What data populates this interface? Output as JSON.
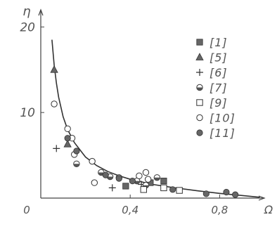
{
  "chart_data": {
    "type": "scatter",
    "title": "",
    "xlabel": "Ω",
    "ylabel": "η",
    "xlim": [
      0,
      1.0
    ],
    "ylim": [
      0,
      22
    ],
    "x_ticks": [
      "0",
      "0,4",
      "0,8"
    ],
    "x_tick_values": [
      0,
      0.4,
      0.8
    ],
    "y_ticks": [
      "10",
      "20"
    ],
    "y_tick_values": [
      10,
      20
    ],
    "grid": false,
    "legend_position": "top-right",
    "curve": {
      "x": [
        0.05,
        0.06,
        0.07,
        0.08,
        0.1,
        0.12,
        0.15,
        0.2,
        0.25,
        0.3,
        0.35,
        0.4,
        0.5,
        0.6,
        0.7,
        0.8,
        0.9,
        0.98
      ],
      "y": [
        18.5,
        15.5,
        13.4,
        11.8,
        9.5,
        8.0,
        6.5,
        4.8,
        3.8,
        3.1,
        2.6,
        2.2,
        1.6,
        1.2,
        0.85,
        0.55,
        0.3,
        0.1
      ]
    },
    "series": [
      {
        "name": "[1]",
        "marker": "filled-square",
        "x": [
          0.38,
          0.49,
          0.55
        ],
        "y": [
          1.4,
          1.8,
          2.0
        ]
      },
      {
        "name": "[5]",
        "marker": "filled-triangle",
        "x": [
          0.06,
          0.12
        ],
        "y": [
          15.0,
          6.3
        ]
      },
      {
        "name": "[6]",
        "marker": "plus",
        "x": [
          0.07,
          0.32,
          0.45
        ],
        "y": [
          5.8,
          1.2,
          1.6
        ]
      },
      {
        "name": "[7]",
        "marker": "half-circle",
        "x": [
          0.16,
          0.27,
          0.31,
          0.35,
          0.43,
          0.47,
          0.52
        ],
        "y": [
          4.0,
          3.0,
          2.5,
          2.4,
          2.0,
          1.5,
          2.4
        ]
      },
      {
        "name": "[9]",
        "marker": "open-square",
        "x": [
          0.46,
          0.55,
          0.62
        ],
        "y": [
          1.0,
          1.2,
          0.9
        ]
      },
      {
        "name": "[10]",
        "marker": "open-circle",
        "x": [
          0.06,
          0.12,
          0.14,
          0.15,
          0.23,
          0.24,
          0.44,
          0.47,
          0.48
        ],
        "y": [
          11.0,
          8.1,
          7.0,
          5.1,
          4.3,
          1.8,
          2.6,
          3.0,
          2.2
        ]
      },
      {
        "name": "[11]",
        "marker": "filled-circle",
        "x": [
          0.12,
          0.16,
          0.29,
          0.35,
          0.41,
          0.59,
          0.74,
          0.83,
          0.87
        ],
        "y": [
          7.0,
          5.5,
          2.7,
          2.3,
          2.0,
          1.0,
          0.5,
          0.7,
          0.4
        ]
      }
    ]
  }
}
